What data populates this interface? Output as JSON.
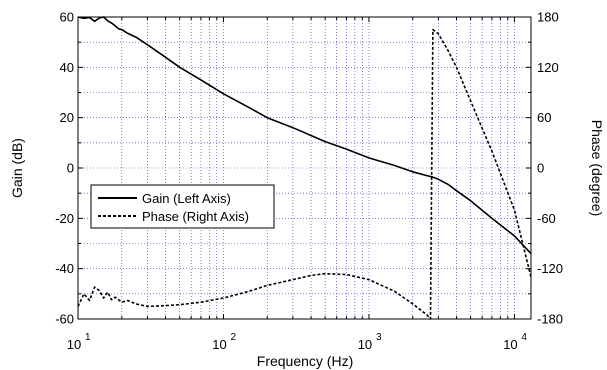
{
  "chart_data": {
    "type": "line",
    "title": "",
    "xlabel": "Frequency (Hz)",
    "ylabel_left": "Gain (dB)",
    "ylabel_right": "Phase (degree)",
    "x_scale": "log",
    "xlim": [
      10,
      13000
    ],
    "ylim_left": [
      -60,
      60
    ],
    "ylim_right": [
      -180,
      180
    ],
    "x_ticks": [
      {
        "value": 10,
        "base": "10",
        "exp": "1"
      },
      {
        "value": 100,
        "base": "10",
        "exp": "2"
      },
      {
        "value": 1000,
        "base": "10",
        "exp": "3"
      },
      {
        "value": 10000,
        "base": "10",
        "exp": "4"
      }
    ],
    "y_ticks_left": [
      "60",
      "40",
      "20",
      "0",
      "-20",
      "-40",
      "-60"
    ],
    "y_ticks_right": [
      "180",
      "120",
      "60",
      "0",
      "-60",
      "-120",
      "-180"
    ],
    "grid": true,
    "grid_color": "#3333cc",
    "legend_position": "center-left",
    "series": [
      {
        "name": "Gain (Left Axis)",
        "axis": "left",
        "style": "solid",
        "x": [
          10,
          11,
          12,
          13,
          14,
          15,
          16,
          17,
          18,
          19,
          20,
          22,
          25,
          30,
          40,
          50,
          70,
          100,
          150,
          200,
          300,
          500,
          700,
          1000,
          1500,
          2000,
          2500,
          2700,
          3000,
          3500,
          4000,
          5000,
          7000,
          10000,
          13000
        ],
        "y": [
          60,
          59.5,
          59.8,
          58.3,
          59.6,
          60,
          58.5,
          57.6,
          56.5,
          55.3,
          55,
          53.5,
          52,
          49,
          44,
          40,
          35,
          29.5,
          24,
          20,
          16,
          10.5,
          7.5,
          4,
          1,
          -1.5,
          -3,
          -3.5,
          -4.5,
          -6.5,
          -9,
          -13,
          -20,
          -27,
          -34
        ]
      },
      {
        "name": "Phase (Right Axis)",
        "axis": "right",
        "style": "dashed",
        "x": [
          10,
          11,
          12,
          13,
          14,
          15,
          16,
          17,
          18,
          20,
          22,
          25,
          30,
          40,
          50,
          70,
          100,
          150,
          200,
          300,
          400,
          500,
          700,
          1000,
          1500,
          2000,
          2500,
          2650,
          2700,
          2750,
          3000,
          3500,
          4000,
          5000,
          7000,
          10000,
          13000
        ],
        "y": [
          -165,
          -150,
          -158,
          -142,
          -146,
          -155,
          -148,
          -157,
          -154,
          -160,
          -158,
          -162,
          -165,
          -164,
          -163,
          -160,
          -155,
          -147,
          -140,
          -133,
          -128,
          -126,
          -127,
          -133,
          -147,
          -162,
          -175,
          -180,
          0,
          165,
          160,
          140,
          120,
          80,
          20,
          -50,
          -130
        ]
      }
    ]
  }
}
